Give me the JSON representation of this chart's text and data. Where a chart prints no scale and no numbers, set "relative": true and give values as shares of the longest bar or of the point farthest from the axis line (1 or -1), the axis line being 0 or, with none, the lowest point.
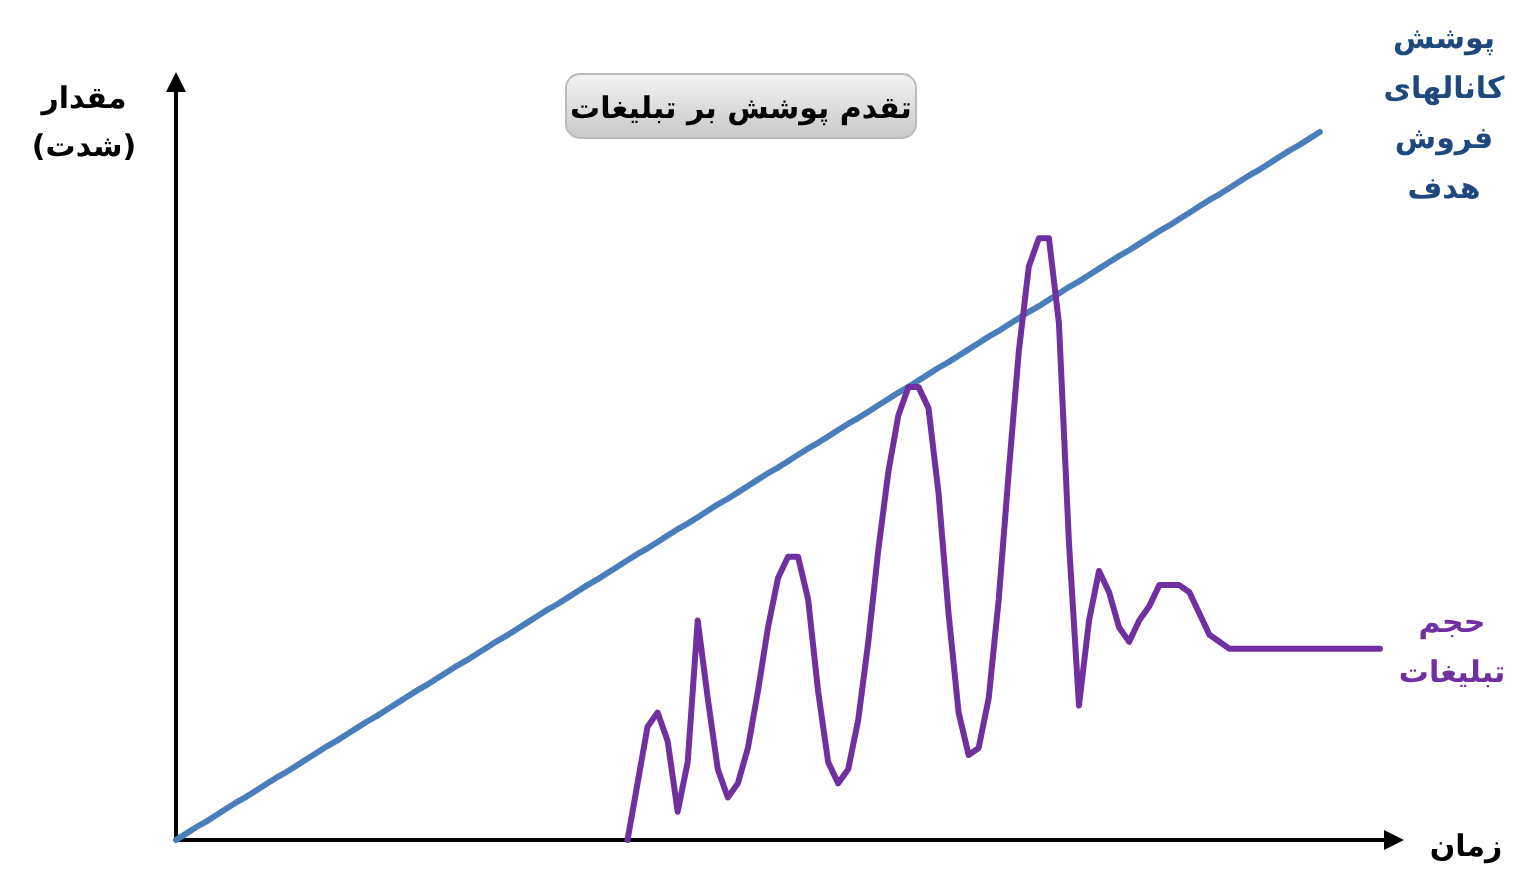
{
  "chart_data": {
    "type": "line",
    "relative": true,
    "title": "تقدم پوشش بر تبلیغات",
    "xlabel": "زمان",
    "ylabel": "مقدار (شدت)",
    "categories": [
      null,
      null,
      null,
      null,
      null,
      null,
      null,
      null,
      null,
      null,
      null,
      null,
      null,
      null,
      null,
      null,
      null,
      null,
      null,
      null,
      null,
      null,
      null,
      null,
      null,
      null,
      null,
      null,
      null,
      null,
      null,
      null,
      null,
      null,
      null,
      null,
      null,
      null,
      null,
      null,
      null,
      null,
      null,
      null,
      null,
      null,
      null,
      null,
      null,
      null,
      null,
      null,
      null,
      null,
      null,
      null,
      null,
      null,
      null,
      null,
      null,
      null,
      null,
      null,
      null,
      null,
      null,
      null,
      null,
      null,
      null,
      null,
      null,
      null,
      null,
      null,
      null,
      null,
      null,
      null,
      null,
      null,
      null,
      null,
      null,
      null,
      null,
      null,
      null,
      null,
      null,
      null,
      null,
      null,
      null,
      null,
      null,
      null,
      null,
      null,
      null,
      null,
      null,
      null,
      null,
      null,
      null,
      null,
      null,
      null,
      null,
      null,
      null,
      null,
      null,
      null,
      null,
      null,
      null,
      null,
      null
    ],
    "series": [
      {
        "name": "پوشش کانالهای فروش هدف",
        "color": "#4a7ebb",
        "values": [
          0,
          0.009,
          0.018,
          0.026,
          0.035,
          0.044,
          0.053,
          0.061,
          0.07,
          0.079,
          0.088,
          0.096,
          0.105,
          0.114,
          0.123,
          0.132,
          0.14,
          0.149,
          0.158,
          0.167,
          0.175,
          0.184,
          0.193,
          0.202,
          0.211,
          0.219,
          0.228,
          0.237,
          0.246,
          0.254,
          0.263,
          0.272,
          0.281,
          0.289,
          0.298,
          0.307,
          0.316,
          0.325,
          0.333,
          0.342,
          0.351,
          0.36,
          0.368,
          0.377,
          0.386,
          0.395,
          0.404,
          0.412,
          0.421,
          0.43,
          0.439,
          0.447,
          0.456,
          0.465,
          0.474,
          0.482,
          0.491,
          0.5,
          0.509,
          0.518,
          0.526,
          0.535,
          0.544,
          0.553,
          0.561,
          0.57,
          0.579,
          0.588,
          0.596,
          0.605,
          0.614,
          0.623,
          0.632,
          0.64,
          0.649,
          0.658,
          0.667,
          0.675,
          0.684,
          0.693,
          0.702,
          0.711,
          0.719,
          0.728,
          0.737,
          0.746,
          0.754,
          0.763,
          0.772,
          0.781,
          0.789,
          0.798,
          0.807,
          0.816,
          0.825,
          0.833,
          0.842,
          0.851,
          0.86,
          0.868,
          0.877,
          0.886,
          0.895,
          0.904,
          0.912,
          0.921,
          0.93,
          0.939,
          0.947,
          0.956,
          0.965,
          0.974,
          0.982,
          0.991,
          1,
          null,
          null,
          null,
          null,
          null,
          null
        ]
      },
      {
        "name": "حجم تبلیغات",
        "color": "#7030a0",
        "values": [
          null,
          null,
          null,
          null,
          null,
          null,
          null,
          null,
          null,
          null,
          null,
          null,
          null,
          null,
          null,
          null,
          null,
          null,
          null,
          null,
          null,
          null,
          null,
          null,
          null,
          null,
          null,
          null,
          null,
          null,
          null,
          null,
          null,
          null,
          null,
          null,
          null,
          null,
          null,
          null,
          null,
          null,
          null,
          null,
          null,
          0,
          0.08,
          0.16,
          0.18,
          0.14,
          0.04,
          0.11,
          0.31,
          0.2,
          0.1,
          0.06,
          0.08,
          0.13,
          0.21,
          0.3,
          0.37,
          0.4,
          0.4,
          0.34,
          0.21,
          0.11,
          0.08,
          0.1,
          0.17,
          0.28,
          0.41,
          0.52,
          0.6,
          0.64,
          0.64,
          0.61,
          0.49,
          0.32,
          0.18,
          0.12,
          0.13,
          0.2,
          0.34,
          0.52,
          0.69,
          0.81,
          0.85,
          0.85,
          0.73,
          0.42,
          0.19,
          0.31,
          0.38,
          0.35,
          0.3,
          0.28,
          0.31,
          0.33,
          0.36,
          0.36,
          0.36,
          0.35,
          0.32,
          0.29,
          0.28,
          0.27,
          0.27,
          0.27,
          0.27,
          0.27,
          0.27,
          0.27,
          0.27,
          0.27,
          0.27,
          0.27,
          0.27,
          0.27,
          0.27,
          0.27,
          0.27
        ]
      }
    ]
  }
}
